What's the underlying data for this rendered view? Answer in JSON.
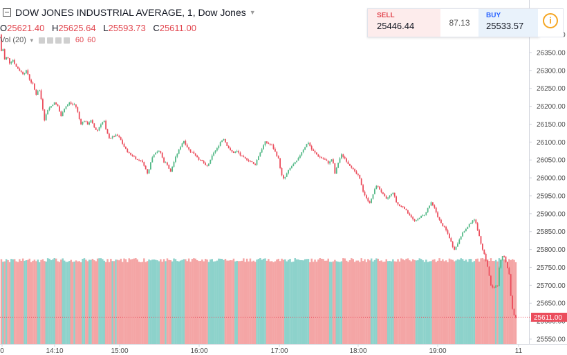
{
  "header": {
    "title": "DOW JONES INDUSTRIAL AVERAGE, 1, Dow Jones",
    "ohlc": [
      {
        "label": "O",
        "value": "25621.40"
      },
      {
        "label": "H",
        "value": "25625.64"
      },
      {
        "label": "L",
        "value": "25593.73"
      },
      {
        "label": "C",
        "value": "25611.00"
      }
    ],
    "volume_label": "Vol (20)",
    "volume_values": [
      "60",
      "60"
    ]
  },
  "trade_panel": {
    "sell_label": "SELL",
    "sell_price": "25446.44",
    "spread": "87.13",
    "buy_label": "BUY",
    "buy_price": "25533.57"
  },
  "colors": {
    "up": "#53b987",
    "down": "#eb4d5c",
    "vol_up": "#8dd2cb",
    "vol_down": "#f4a5a5",
    "accent": "#f5a623"
  },
  "chart_data": {
    "type": "candlestick",
    "x_ticks": [
      "0",
      "14:10",
      "15:00",
      "16:00",
      "17:00",
      "18:00",
      "19:00",
      "11"
    ],
    "y_ticks": [
      "26400.00",
      "26350.00",
      "26300.00",
      "26250.00",
      "26200.00",
      "26150.00",
      "26100.00",
      "26050.00",
      "26000.00",
      "25950.00",
      "25900.00",
      "25850.00",
      "25800.00",
      "25750.00",
      "25700.00",
      "25650.00",
      "25600.00",
      "25550.00"
    ],
    "ylim": [
      25540,
      26410
    ],
    "last_price": "25611.00",
    "price_path": [
      [
        0,
        26400
      ],
      [
        3,
        26350
      ],
      [
        5,
        26370
      ],
      [
        8,
        26330
      ],
      [
        12,
        26340
      ],
      [
        15,
        26320
      ],
      [
        20,
        26330
      ],
      [
        25,
        26310
      ],
      [
        30,
        26300
      ],
      [
        35,
        26290
      ],
      [
        40,
        26300
      ],
      [
        45,
        26270
      ],
      [
        50,
        26260
      ],
      [
        53,
        26230
      ],
      [
        58,
        26250
      ],
      [
        62,
        26210
      ],
      [
        66,
        26160
      ],
      [
        70,
        26190
      ],
      [
        75,
        26200
      ],
      [
        80,
        26210
      ],
      [
        85,
        26200
      ],
      [
        90,
        26170
      ],
      [
        93,
        26190
      ],
      [
        97,
        26200
      ],
      [
        102,
        26210
      ],
      [
        106,
        26205
      ],
      [
        110,
        26205
      ],
      [
        113,
        26190
      ],
      [
        118,
        26150
      ],
      [
        123,
        26160
      ],
      [
        128,
        26150
      ],
      [
        133,
        26160
      ],
      [
        138,
        26140
      ],
      [
        142,
        26130
      ],
      [
        147,
        26150
      ],
      [
        152,
        26160
      ],
      [
        155,
        26130
      ],
      [
        160,
        26110
      ],
      [
        165,
        26115
      ],
      [
        170,
        26120
      ],
      [
        175,
        26110
      ],
      [
        180,
        26090
      ],
      [
        185,
        26075
      ],
      [
        190,
        26065
      ],
      [
        195,
        26060
      ],
      [
        200,
        26050
      ],
      [
        205,
        26050
      ],
      [
        210,
        26035
      ],
      [
        215,
        26010
      ],
      [
        220,
        26050
      ],
      [
        225,
        26070
      ],
      [
        230,
        26075
      ],
      [
        234,
        26070
      ],
      [
        238,
        26045
      ],
      [
        243,
        26040
      ],
      [
        248,
        26015
      ],
      [
        252,
        26040
      ],
      [
        257,
        26065
      ],
      [
        262,
        26085
      ],
      [
        267,
        26105
      ],
      [
        271,
        26090
      ],
      [
        276,
        26075
      ],
      [
        281,
        26070
      ],
      [
        286,
        26060
      ],
      [
        290,
        26050
      ],
      [
        295,
        26045
      ],
      [
        300,
        26030
      ],
      [
        305,
        26045
      ],
      [
        310,
        26070
      ],
      [
        315,
        26080
      ],
      [
        320,
        26100
      ],
      [
        325,
        26110
      ],
      [
        330,
        26090
      ],
      [
        335,
        26075
      ],
      [
        340,
        26070
      ],
      [
        345,
        26075
      ],
      [
        350,
        26060
      ],
      [
        355,
        26055
      ],
      [
        360,
        26050
      ],
      [
        365,
        26045
      ],
      [
        370,
        26035
      ],
      [
        375,
        26060
      ],
      [
        380,
        26080
      ],
      [
        385,
        26100
      ],
      [
        390,
        26095
      ],
      [
        395,
        26090
      ],
      [
        400,
        26070
      ],
      [
        405,
        26050
      ],
      [
        408,
        26010
      ],
      [
        412,
        25995
      ],
      [
        417,
        26015
      ],
      [
        422,
        26030
      ],
      [
        427,
        26040
      ],
      [
        432,
        26050
      ],
      [
        437,
        26070
      ],
      [
        442,
        26085
      ],
      [
        447,
        26100
      ],
      [
        452,
        26080
      ],
      [
        457,
        26070
      ],
      [
        462,
        26060
      ],
      [
        467,
        26055
      ],
      [
        472,
        26050
      ],
      [
        477,
        26040
      ],
      [
        482,
        26055
      ],
      [
        486,
        26010
      ],
      [
        490,
        26040
      ],
      [
        495,
        26065
      ],
      [
        500,
        26055
      ],
      [
        505,
        26040
      ],
      [
        510,
        26030
      ],
      [
        515,
        26015
      ],
      [
        520,
        26005
      ],
      [
        523,
        25990
      ],
      [
        527,
        25960
      ],
      [
        532,
        25940
      ],
      [
        537,
        25930
      ],
      [
        541,
        25955
      ],
      [
        546,
        25980
      ],
      [
        550,
        25970
      ],
      [
        555,
        25955
      ],
      [
        560,
        25940
      ],
      [
        565,
        25950
      ],
      [
        570,
        25960
      ],
      [
        575,
        25930
      ],
      [
        580,
        25920
      ],
      [
        585,
        25920
      ],
      [
        590,
        25905
      ],
      [
        595,
        25895
      ],
      [
        600,
        25880
      ],
      [
        604,
        25880
      ],
      [
        608,
        25890
      ],
      [
        613,
        25895
      ],
      [
        617,
        25900
      ],
      [
        620,
        25915
      ],
      [
        625,
        25930
      ],
      [
        630,
        25915
      ],
      [
        635,
        25890
      ],
      [
        640,
        25870
      ],
      [
        645,
        25860
      ],
      [
        650,
        25840
      ],
      [
        655,
        25815
      ],
      [
        658,
        25800
      ],
      [
        662,
        25810
      ],
      [
        667,
        25835
      ],
      [
        672,
        25850
      ],
      [
        677,
        25860
      ],
      [
        682,
        25875
      ],
      [
        686,
        25885
      ],
      [
        690,
        25875
      ],
      [
        694,
        25840
      ],
      [
        698,
        25810
      ],
      [
        703,
        25780
      ],
      [
        708,
        25740
      ],
      [
        711,
        25700
      ],
      [
        715,
        25690
      ],
      [
        718,
        25700
      ],
      [
        721,
        25700
      ],
      [
        724,
        25760
      ],
      [
        728,
        25780
      ],
      [
        731,
        25780
      ],
      [
        734,
        25760
      ],
      [
        738,
        25730
      ],
      [
        741,
        25650
      ],
      [
        744,
        25620
      ],
      [
        746,
        25611
      ]
    ]
  }
}
